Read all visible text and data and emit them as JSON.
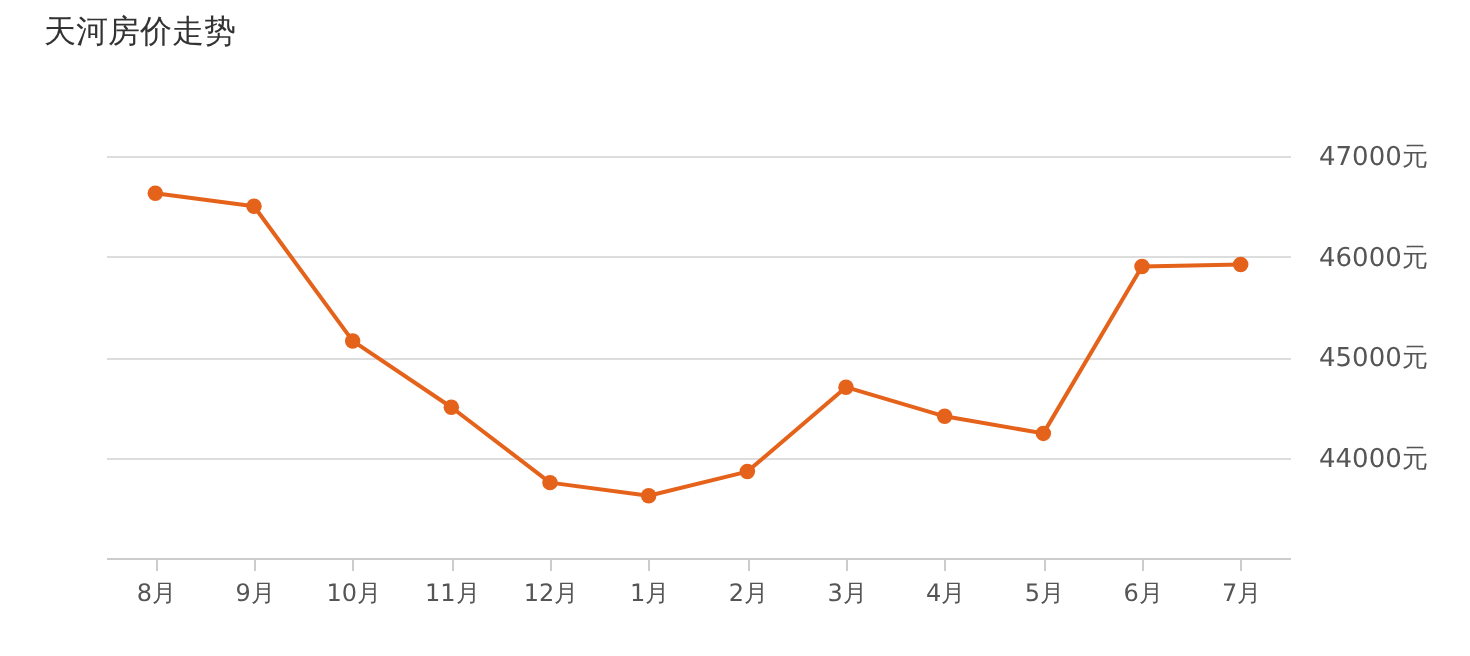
{
  "chart_data": {
    "type": "line",
    "title": "天河房价走势",
    "categories": [
      "8月",
      "9月",
      "10月",
      "11月",
      "12月",
      "1月",
      "2月",
      "3月",
      "4月",
      "5月",
      "6月",
      "7月"
    ],
    "series": [
      {
        "color": "#e5621b",
        "values": [
          46630,
          46500,
          45160,
          44500,
          43750,
          43620,
          43860,
          44700,
          44410,
          44240,
          45900,
          45920
        ]
      }
    ],
    "ylim": [
      43000,
      47000
    ],
    "yticks": [
      {
        "value": 44000,
        "label": "44000元"
      },
      {
        "value": 45000,
        "label": "45000元"
      },
      {
        "value": 46000,
        "label": "46000元"
      },
      {
        "value": 47000,
        "label": "47000元"
      }
    ],
    "grid": "y",
    "marker": "circle",
    "line_style": "solid"
  }
}
